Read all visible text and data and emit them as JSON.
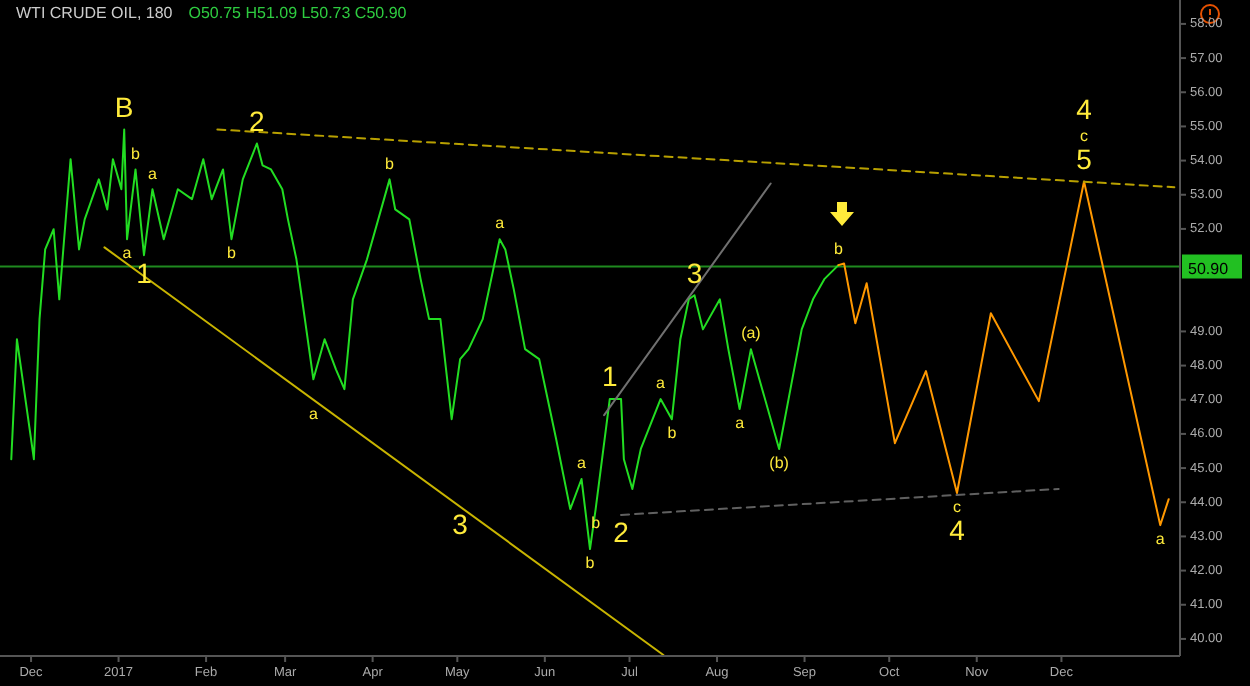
{
  "chart_data": {
    "type": "line",
    "title": "WTI CRUDE OIL, 180",
    "subtitle": "O50.75 H51.09 L50.73 C50.90",
    "xlim": [
      "2016-11-20",
      "2018-01-12"
    ],
    "ylim": [
      39.5,
      58.7
    ],
    "xticks": [
      {
        "value": "2016-12-01",
        "label": "Dec"
      },
      {
        "value": "2017-01-01",
        "label": "2017"
      },
      {
        "value": "2017-02-01",
        "label": "Feb"
      },
      {
        "value": "2017-03-01",
        "label": "Mar"
      },
      {
        "value": "2017-04-01",
        "label": "Apr"
      },
      {
        "value": "2017-05-01",
        "label": "May"
      },
      {
        "value": "2017-06-01",
        "label": "Jun"
      },
      {
        "value": "2017-07-01",
        "label": "Jul"
      },
      {
        "value": "2017-08-01",
        "label": "Aug"
      },
      {
        "value": "2017-09-01",
        "label": "Sep"
      },
      {
        "value": "2017-10-01",
        "label": "Oct"
      },
      {
        "value": "2017-11-01",
        "label": "Nov"
      },
      {
        "value": "2017-12-01",
        "label": "Dec"
      }
    ],
    "yticks": [
      {
        "value": 40,
        "label": "40.00"
      },
      {
        "value": 41,
        "label": "41.00"
      },
      {
        "value": 42,
        "label": "42.00"
      },
      {
        "value": 43,
        "label": "43.00"
      },
      {
        "value": 44,
        "label": "44.00"
      },
      {
        "value": 45,
        "label": "45.00"
      },
      {
        "value": 46,
        "label": "46.00"
      },
      {
        "value": 47,
        "label": "47.00"
      },
      {
        "value": 48,
        "label": "48.00"
      },
      {
        "value": 49,
        "label": "49.00"
      },
      {
        "value": 52,
        "label": "52.00"
      },
      {
        "value": 53,
        "label": "53.00"
      },
      {
        "value": 54,
        "label": "54.00"
      },
      {
        "value": 55,
        "label": "55.00"
      },
      {
        "value": 56,
        "label": "56.00"
      },
      {
        "value": 57,
        "label": "57.00"
      },
      {
        "value": 58,
        "label": "58.00"
      }
    ],
    "grid": false,
    "marker": "none",
    "ref_lines": [
      {
        "axis": "y",
        "value": 50.9,
        "label": "50.90",
        "color": "#1f8a1f"
      }
    ],
    "series": [
      {
        "color": "#22dd22",
        "line_style": "solid",
        "x": [
          "2016-11-24",
          "2016-11-26",
          "2016-11-29",
          "2016-12-02",
          "2016-12-04",
          "2016-12-06",
          "2016-12-09",
          "2016-12-11",
          "2016-12-15",
          "2016-12-18",
          "2016-12-20",
          "2016-12-25",
          "2016-12-28",
          "2016-12-30",
          "2017-01-02",
          "2017-01-03",
          "2017-01-04",
          "2017-01-07",
          "2017-01-10",
          "2017-01-13",
          "2017-01-17",
          "2017-01-22",
          "2017-01-27",
          "2017-01-31",
          "2017-02-03",
          "2017-02-07",
          "2017-02-10",
          "2017-02-14",
          "2017-02-19",
          "2017-02-21",
          "2017-02-24",
          "2017-02-28",
          "2017-03-02",
          "2017-03-05",
          "2017-03-08",
          "2017-03-11",
          "2017-03-15",
          "2017-03-19",
          "2017-03-22",
          "2017-03-25",
          "2017-03-30",
          "2017-04-07",
          "2017-04-09",
          "2017-04-14",
          "2017-04-18",
          "2017-04-21",
          "2017-04-25",
          "2017-04-29",
          "2017-05-02",
          "2017-05-05",
          "2017-05-10",
          "2017-05-16",
          "2017-05-18",
          "2017-05-21",
          "2017-05-25",
          "2017-05-30",
          "2017-06-02",
          "2017-06-05",
          "2017-06-10",
          "2017-06-14",
          "2017-06-17",
          "2017-06-19",
          "2017-06-24",
          "2017-06-28",
          "2017-06-29",
          "2017-07-02",
          "2017-07-05",
          "2017-07-12",
          "2017-07-16",
          "2017-07-19",
          "2017-07-22",
          "2017-07-24",
          "2017-07-27",
          "2017-08-02",
          "2017-08-05",
          "2017-08-09",
          "2017-08-13",
          "2017-08-17",
          "2017-08-23",
          "2017-08-27",
          "2017-08-31",
          "2017-09-04",
          "2017-09-08",
          "2017-09-13"
        ],
        "values": [
          45.26,
          48.77,
          47.02,
          45.26,
          49.36,
          51.4,
          51.99,
          49.94,
          54.04,
          51.4,
          52.28,
          53.45,
          52.57,
          54.04,
          53.16,
          54.91,
          51.7,
          53.74,
          51.23,
          53.16,
          51.7,
          53.16,
          52.87,
          54.04,
          52.87,
          53.74,
          51.7,
          53.45,
          54.5,
          53.86,
          53.74,
          53.16,
          52.28,
          51.11,
          49.36,
          47.6,
          48.77,
          47.89,
          47.31,
          49.94,
          51.11,
          53.45,
          52.57,
          52.28,
          50.53,
          49.36,
          49.36,
          46.43,
          48.19,
          48.48,
          49.36,
          51.7,
          51.4,
          50.23,
          48.48,
          48.19,
          47.02,
          45.85,
          43.8,
          44.68,
          42.63,
          43.8,
          47.02,
          47.02,
          45.26,
          44.39,
          45.56,
          47.02,
          46.43,
          48.77,
          49.94,
          50.06,
          49.06,
          49.94,
          48.48,
          46.73,
          48.48,
          47.31,
          45.56,
          47.31,
          49.06,
          49.94,
          50.53,
          50.94
        ]
      },
      {
        "color": "#ff9800",
        "line_style": "solid",
        "x": [
          "2017-09-13",
          "2017-09-15",
          "2017-09-19",
          "2017-09-23",
          "2017-10-03",
          "2017-10-14",
          "2017-10-25",
          "2017-11-06",
          "2017-11-23",
          "2017-12-09",
          "2018-01-05",
          "2018-01-08"
        ],
        "values": [
          50.94,
          50.99,
          49.24,
          50.41,
          45.73,
          47.84,
          44.27,
          49.53,
          46.96,
          53.39,
          43.33,
          44.09
        ]
      },
      {
        "color": "#c8b400",
        "line_style": "solid",
        "x": [
          "2016-12-27",
          "2017-07-13"
        ],
        "values": [
          51.46,
          39.53
        ]
      },
      {
        "color": "#b8a000",
        "line_style": "dashed",
        "x": [
          "2017-02-05",
          "2018-01-10"
        ],
        "values": [
          54.91,
          53.22
        ]
      },
      {
        "color": "#707070",
        "line_style": "solid",
        "x": [
          "2017-06-22",
          "2017-08-20"
        ],
        "values": [
          46.55,
          53.33
        ]
      },
      {
        "color": "#606060",
        "line_style": "dashed",
        "x": [
          "2017-06-28",
          "2017-11-30"
        ],
        "values": [
          43.63,
          44.39
        ]
      }
    ],
    "annotations": [
      {
        "text": "B",
        "x": "2017-01-03",
        "y": 54.91
      },
      {
        "text": "b",
        "x": "2017-01-07",
        "y": 53.74
      },
      {
        "text": "a",
        "x": "2017-01-13",
        "y": 53.16
      },
      {
        "text": "a",
        "x": "2017-01-04",
        "y": 51.7
      },
      {
        "text": "1",
        "x": "2017-01-10",
        "y": 51.23
      },
      {
        "text": "2",
        "x": "2017-02-19",
        "y": 54.5
      },
      {
        "text": "b",
        "x": "2017-04-07",
        "y": 53.45
      },
      {
        "text": "b",
        "x": "2017-02-10",
        "y": 51.7
      },
      {
        "text": "a",
        "x": "2017-05-16",
        "y": 51.7
      },
      {
        "text": "a",
        "x": "2017-03-11",
        "y": 47.0
      },
      {
        "text": "3",
        "x": "2017-05-02",
        "y": 43.87
      },
      {
        "text": "b",
        "x": "2017-06-17",
        "y": 42.63
      },
      {
        "text": "1",
        "x": "2017-06-24",
        "y": 47.02
      },
      {
        "text": "a",
        "x": "2017-06-14",
        "y": 44.68
      },
      {
        "text": "b",
        "x": "2017-06-19",
        "y": 43.8
      },
      {
        "text": "a",
        "x": "2017-07-12",
        "y": 47.02
      },
      {
        "text": "b",
        "x": "2017-07-16",
        "y": 46.43
      },
      {
        "text": "2",
        "x": "2017-06-28",
        "y": 43.63
      },
      {
        "text": "3",
        "x": "2017-07-24",
        "y": 50.06
      },
      {
        "text": "(a)",
        "x": "2017-08-13",
        "y": 48.48
      },
      {
        "text": "a",
        "x": "2017-08-09",
        "y": 46.73
      },
      {
        "text": "(b)",
        "x": "2017-08-23",
        "y": 45.56
      },
      {
        "text": "b",
        "x": "2017-09-13",
        "y": 50.94
      },
      {
        "text": "c",
        "x": "2017-10-25",
        "y": 44.27
      },
      {
        "text": "4",
        "x": "2017-10-25",
        "y": 44.27
      },
      {
        "text": "4",
        "x": "2017-12-09",
        "y": 53.39
      },
      {
        "text": "c",
        "x": "2017-12-09",
        "y": 53.39
      },
      {
        "text": "5",
        "x": "2017-12-09",
        "y": 53.39
      },
      {
        "text": "a",
        "x": "2018-01-05",
        "y": 43.33
      }
    ]
  }
}
